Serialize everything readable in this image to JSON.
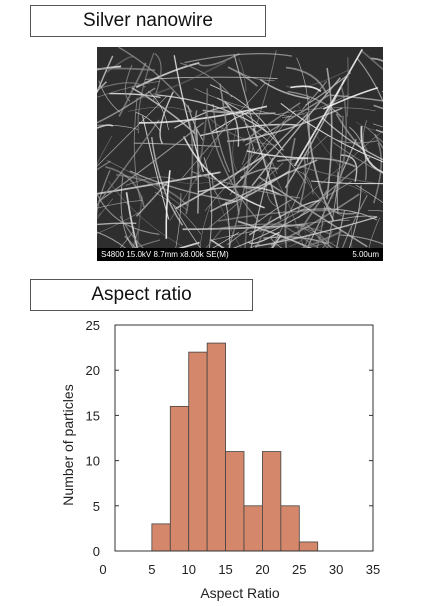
{
  "sem_panel": {
    "title": "Silver nanowire",
    "caption_left": "S4800 15.0kV 8.7mm x8.00k SE(M)",
    "caption_right": "5.00um"
  },
  "chart_panel": {
    "title": "Aspect ratio"
  },
  "chart_data": {
    "type": "bar",
    "bins": [
      [
        5,
        7.5
      ],
      [
        7.5,
        10
      ],
      [
        10,
        12.5
      ],
      [
        12.5,
        15
      ],
      [
        15,
        17.5
      ],
      [
        17.5,
        20
      ],
      [
        20,
        22.5
      ],
      [
        22.5,
        25
      ],
      [
        25,
        27.5
      ],
      [
        27.5,
        30
      ]
    ],
    "values": [
      3,
      16,
      22,
      23,
      11,
      5,
      11,
      5,
      1,
      0
    ],
    "xlabel": "Aspect Ratio",
    "ylabel": "Number of particles",
    "xlim": [
      0,
      35
    ],
    "ylim": [
      0,
      25
    ],
    "xticks": [
      "0",
      "5",
      "10",
      "15",
      "20",
      "25",
      "30",
      "35"
    ],
    "yticks": [
      "0",
      "5",
      "10",
      "15",
      "20",
      "25"
    ],
    "bar_color": "#d4876a"
  }
}
